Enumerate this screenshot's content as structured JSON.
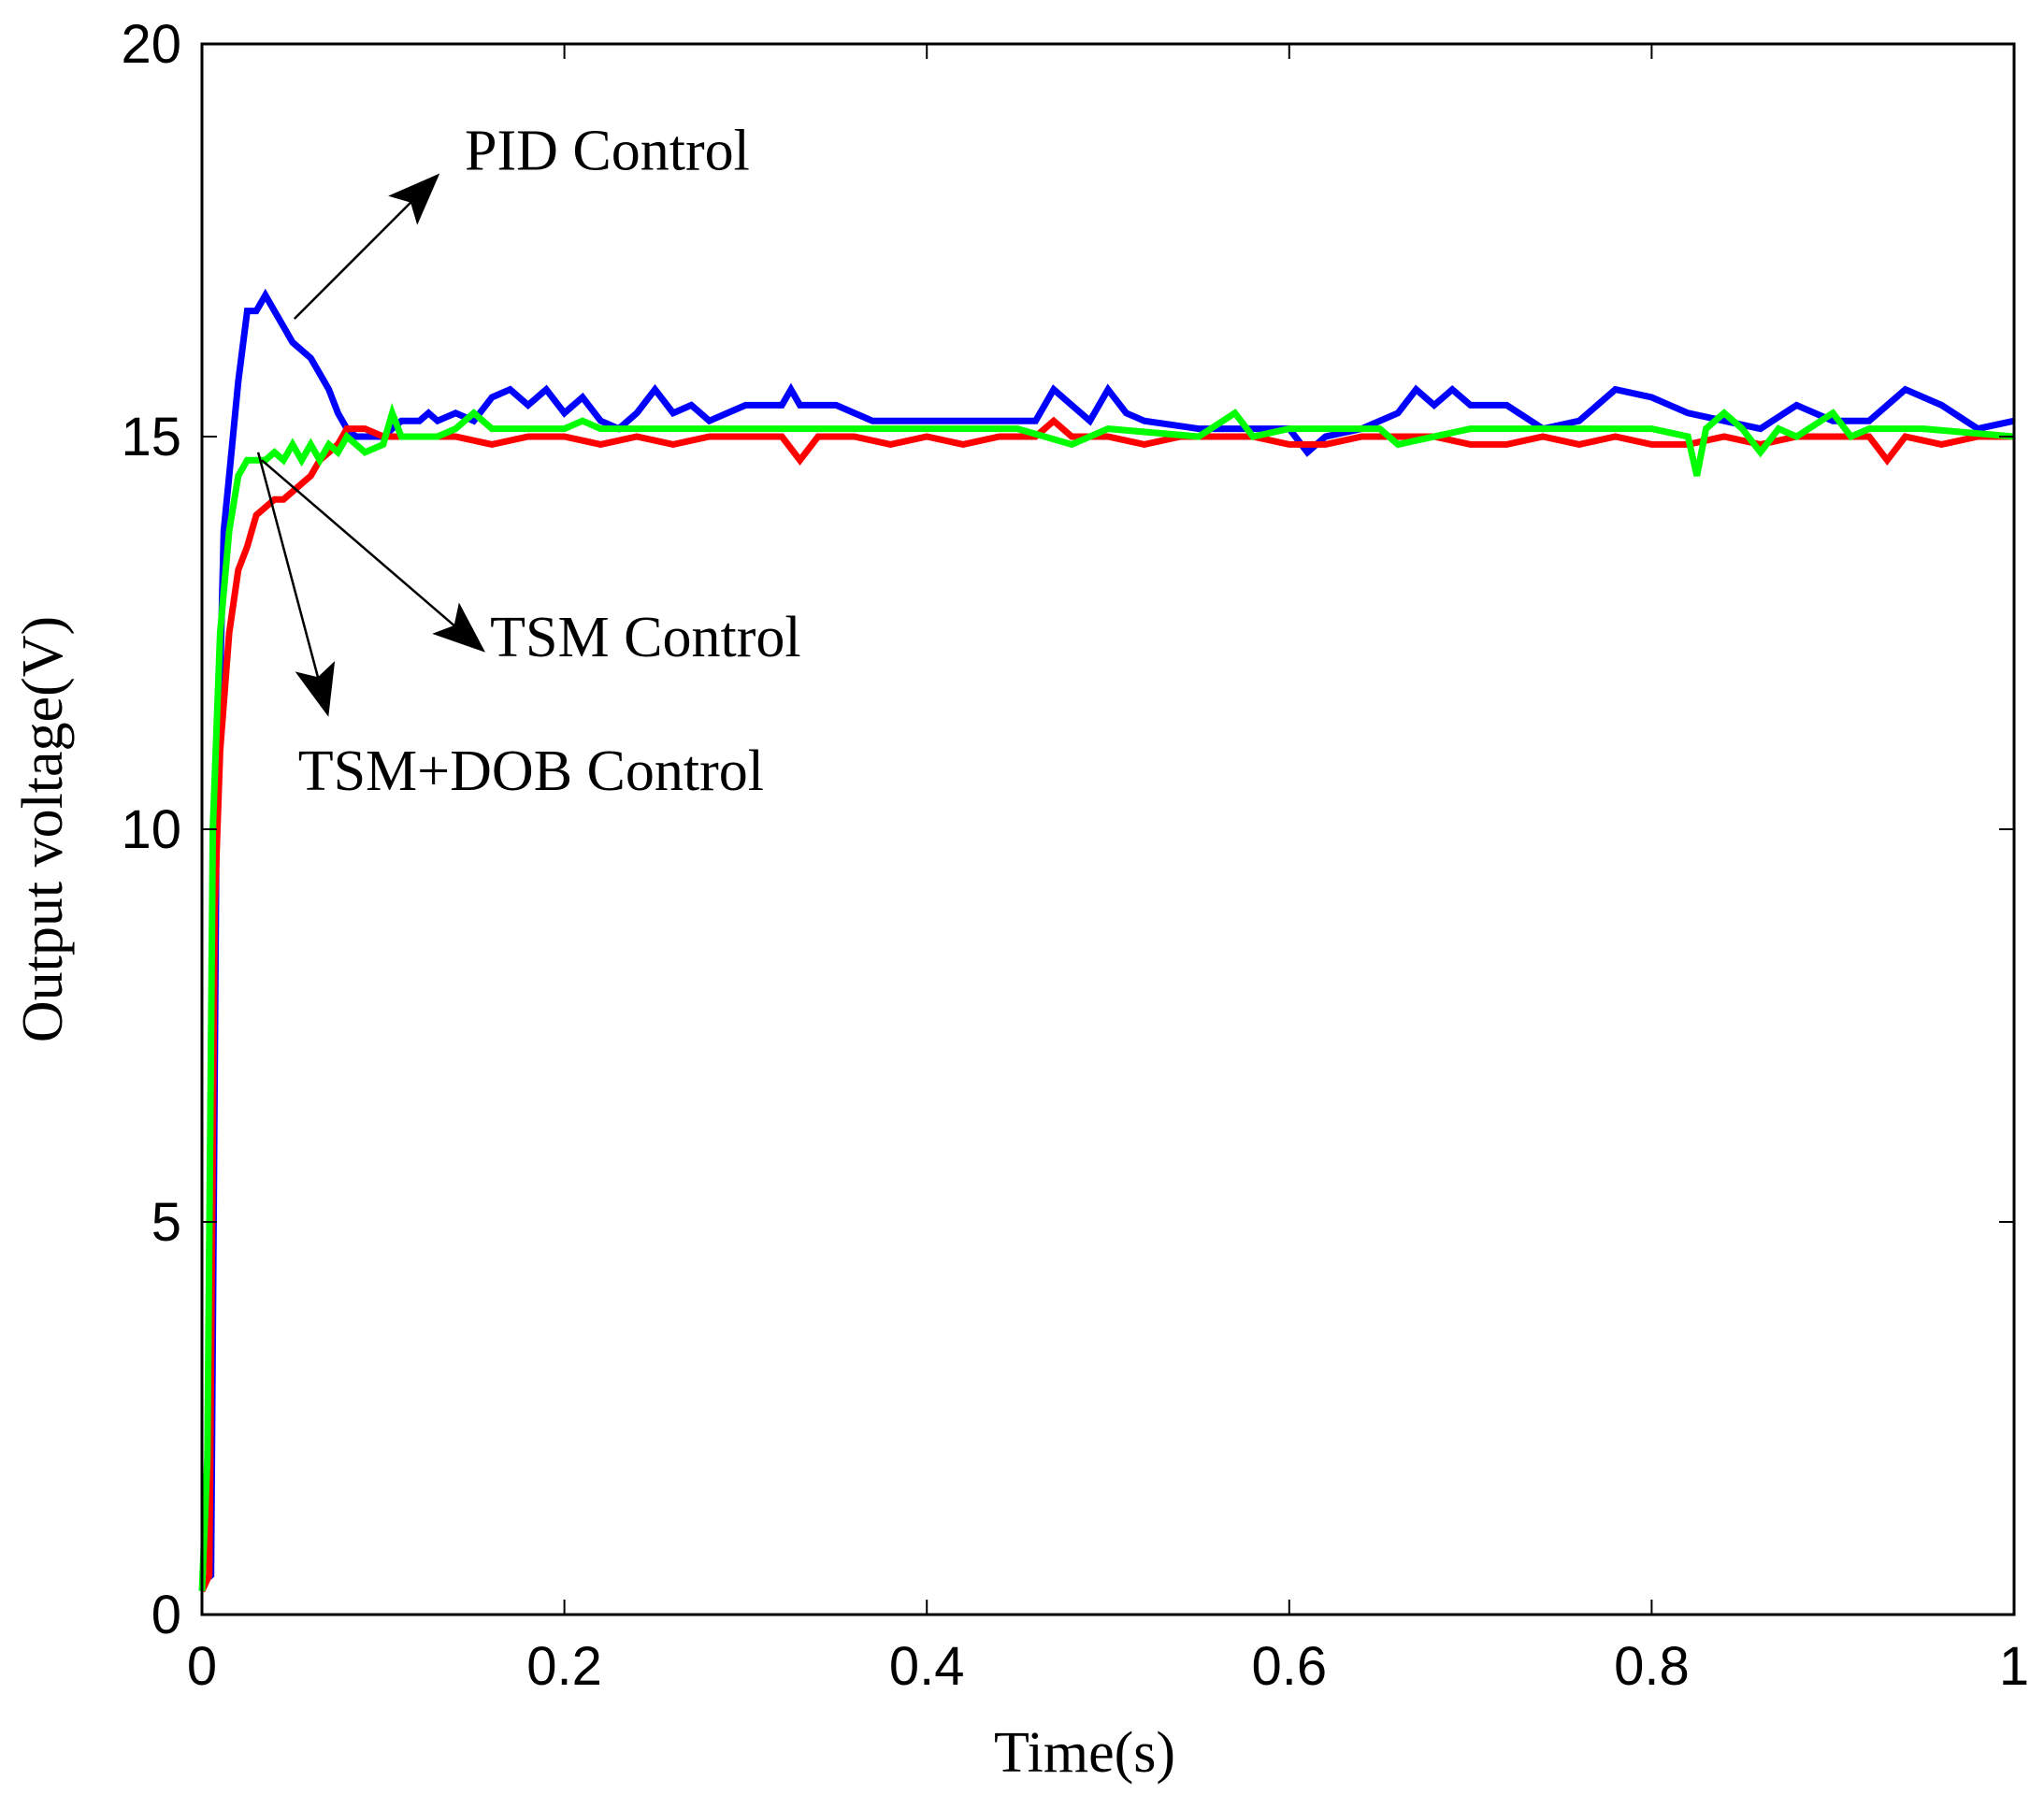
{
  "chart_data": {
    "type": "line",
    "title": "",
    "xlabel": "Time(s)",
    "ylabel": "Output voltage(V)",
    "xlim": [
      0,
      1
    ],
    "ylim": [
      0,
      20
    ],
    "xticks": [
      0,
      0.2,
      0.4,
      0.6,
      0.8,
      1
    ],
    "xtick_labels": [
      "0",
      "0.2",
      "0.4",
      "0.6",
      "0.8",
      "1"
    ],
    "yticks": [
      0,
      5,
      10,
      15,
      20
    ],
    "ytick_labels": [
      "0",
      "5",
      "10",
      "15",
      "20"
    ],
    "grid": false,
    "series": [
      {
        "name": "PID Control",
        "color": "#0000ff",
        "x": [
          0,
          0.005,
          0.008,
          0.012,
          0.015,
          0.02,
          0.025,
          0.03,
          0.035,
          0.04,
          0.045,
          0.05,
          0.055,
          0.06,
          0.065,
          0.07,
          0.075,
          0.08,
          0.085,
          0.09,
          0.1,
          0.11,
          0.12,
          0.125,
          0.13,
          0.14,
          0.15,
          0.16,
          0.17,
          0.18,
          0.19,
          0.2,
          0.21,
          0.22,
          0.23,
          0.24,
          0.25,
          0.26,
          0.27,
          0.28,
          0.3,
          0.32,
          0.325,
          0.33,
          0.35,
          0.37,
          0.4,
          0.42,
          0.44,
          0.46,
          0.47,
          0.48,
          0.49,
          0.5,
          0.51,
          0.52,
          0.55,
          0.6,
          0.61,
          0.62,
          0.64,
          0.66,
          0.67,
          0.68,
          0.69,
          0.7,
          0.72,
          0.74,
          0.76,
          0.78,
          0.8,
          0.82,
          0.84,
          0.86,
          0.88,
          0.9,
          0.92,
          0.94,
          0.96,
          0.98,
          1.0
        ],
        "y": [
          0.4,
          0.5,
          10.0,
          13.8,
          14.5,
          15.7,
          16.6,
          16.6,
          16.8,
          16.6,
          16.4,
          16.2,
          16.1,
          16.0,
          15.8,
          15.6,
          15.3,
          15.1,
          15.0,
          15.0,
          15.0,
          15.2,
          15.2,
          15.3,
          15.2,
          15.3,
          15.2,
          15.5,
          15.6,
          15.4,
          15.6,
          15.3,
          15.5,
          15.2,
          15.1,
          15.3,
          15.6,
          15.3,
          15.4,
          15.2,
          15.4,
          15.4,
          15.6,
          15.4,
          15.4,
          15.2,
          15.2,
          15.2,
          15.2,
          15.2,
          15.6,
          15.4,
          15.2,
          15.6,
          15.3,
          15.2,
          15.1,
          15.1,
          14.8,
          15.0,
          15.1,
          15.3,
          15.6,
          15.4,
          15.6,
          15.4,
          15.4,
          15.1,
          15.2,
          15.6,
          15.5,
          15.3,
          15.2,
          15.1,
          15.4,
          15.2,
          15.2,
          15.6,
          15.4,
          15.1,
          15.2
        ]
      },
      {
        "name": "TSM Control",
        "color": "#ff0000",
        "x": [
          0,
          0.004,
          0.007,
          0.01,
          0.015,
          0.02,
          0.025,
          0.03,
          0.035,
          0.04,
          0.045,
          0.05,
          0.055,
          0.06,
          0.065,
          0.07,
          0.075,
          0.08,
          0.09,
          0.1,
          0.12,
          0.14,
          0.16,
          0.18,
          0.2,
          0.22,
          0.24,
          0.26,
          0.28,
          0.3,
          0.32,
          0.33,
          0.34,
          0.36,
          0.38,
          0.4,
          0.42,
          0.44,
          0.46,
          0.47,
          0.48,
          0.5,
          0.52,
          0.54,
          0.56,
          0.58,
          0.6,
          0.62,
          0.64,
          0.66,
          0.68,
          0.7,
          0.72,
          0.74,
          0.76,
          0.78,
          0.8,
          0.82,
          0.84,
          0.86,
          0.88,
          0.9,
          0.92,
          0.93,
          0.94,
          0.96,
          0.98,
          1.0
        ],
        "y": [
          0.3,
          0.5,
          9.0,
          11.0,
          12.5,
          13.3,
          13.6,
          14.0,
          14.1,
          14.2,
          14.2,
          14.3,
          14.4,
          14.5,
          14.7,
          14.8,
          14.9,
          15.1,
          15.1,
          15.0,
          15.0,
          15.0,
          14.9,
          15.0,
          15.0,
          14.9,
          15.0,
          14.9,
          15.0,
          15.0,
          15.0,
          14.7,
          15.0,
          15.0,
          14.9,
          15.0,
          14.9,
          15.0,
          15.0,
          15.2,
          15.0,
          15.0,
          14.9,
          15.0,
          15.0,
          15.0,
          14.9,
          14.9,
          15.0,
          15.0,
          15.0,
          14.9,
          14.9,
          15.0,
          14.9,
          15.0,
          14.9,
          14.9,
          15.0,
          14.9,
          15.0,
          15.0,
          15.0,
          14.7,
          15.0,
          14.9,
          15.0,
          15.0
        ]
      },
      {
        "name": "TSM+DOB Control",
        "color": "#00ff00",
        "x": [
          0,
          0.003,
          0.006,
          0.01,
          0.015,
          0.02,
          0.025,
          0.03,
          0.035,
          0.04,
          0.045,
          0.05,
          0.055,
          0.06,
          0.065,
          0.07,
          0.075,
          0.08,
          0.09,
          0.1,
          0.105,
          0.11,
          0.12,
          0.13,
          0.14,
          0.15,
          0.16,
          0.2,
          0.21,
          0.22,
          0.25,
          0.3,
          0.35,
          0.4,
          0.45,
          0.48,
          0.5,
          0.55,
          0.57,
          0.58,
          0.6,
          0.65,
          0.66,
          0.7,
          0.75,
          0.8,
          0.82,
          0.825,
          0.83,
          0.84,
          0.85,
          0.86,
          0.87,
          0.88,
          0.9,
          0.91,
          0.92,
          0.95,
          1.0
        ],
        "y": [
          0.3,
          2.0,
          10.0,
          12.5,
          13.8,
          14.5,
          14.7,
          14.7,
          14.7,
          14.8,
          14.7,
          14.9,
          14.7,
          14.9,
          14.7,
          14.9,
          14.8,
          15.0,
          14.8,
          14.9,
          15.3,
          15.0,
          15.0,
          15.0,
          15.1,
          15.3,
          15.1,
          15.1,
          15.2,
          15.1,
          15.1,
          15.1,
          15.1,
          15.1,
          15.1,
          14.9,
          15.1,
          15.0,
          15.3,
          15.0,
          15.1,
          15.1,
          14.9,
          15.1,
          15.1,
          15.1,
          15.0,
          14.5,
          15.1,
          15.3,
          15.1,
          14.8,
          15.1,
          15.0,
          15.3,
          15.0,
          15.1,
          15.1,
          15.0
        ]
      }
    ],
    "annotations": [
      {
        "text": "PID  Control",
        "arrow_from": [
          0.051,
          16.5
        ],
        "arrow_to": [
          0.129,
          18.3
        ],
        "text_at": [
          0.145,
          18.4
        ]
      },
      {
        "text": "TSM Control",
        "arrow_from": [
          0.033,
          14.7
        ],
        "arrow_to": [
          0.154,
          12.3
        ],
        "text_at": [
          0.159,
          12.2
        ]
      },
      {
        "text": "TSM+DOB Control",
        "arrow_from": [
          0.031,
          14.8
        ],
        "arrow_to": [
          0.069,
          11.5
        ],
        "text_at": [
          0.053,
          10.5
        ]
      }
    ]
  }
}
